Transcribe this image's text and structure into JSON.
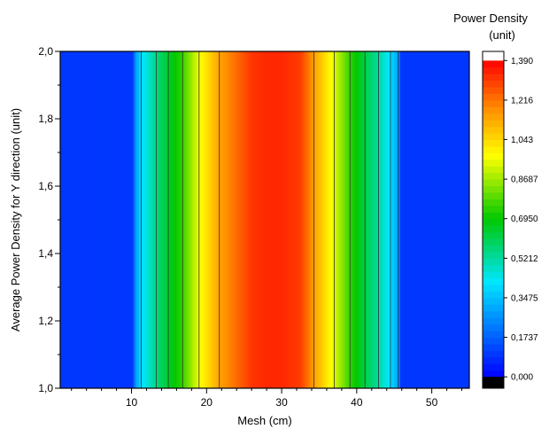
{
  "chart_data": {
    "type": "heatmap",
    "title": "",
    "xlabel": "Mesh (cm)",
    "ylabel": "Average Power Density for Y direction (unit)",
    "xlim": [
      0.5,
      55
    ],
    "ylim": [
      1.0,
      2.0
    ],
    "x_ticks": [
      10,
      20,
      30,
      40,
      50
    ],
    "x_tick_labels": [
      "10",
      "20",
      "30",
      "40",
      "50"
    ],
    "y_ticks": [
      1.0,
      1.2,
      1.4,
      1.6,
      1.8,
      2.0
    ],
    "y_tick_labels": [
      "1,0",
      "1,2",
      "1,4",
      "1,6",
      "1,8",
      "2,0"
    ],
    "contour_lines_x": [
      11.3,
      13.3,
      14.9,
      16.8,
      19.0,
      21.7,
      34.3,
      37.0,
      39.1,
      41.1,
      42.9,
      44.5,
      45.5
    ],
    "profile": {
      "x": [
        0.5,
        10.2,
        10.5,
        11.3,
        13.3,
        14.9,
        16.8,
        19.0,
        21.7,
        24.5,
        26.0,
        28.0,
        30.0,
        32.5,
        34.3,
        37.0,
        39.1,
        41.1,
        42.9,
        44.5,
        45.5,
        45.9,
        55.0
      ],
      "value": [
        0.1,
        0.1,
        0.28,
        0.4,
        0.55,
        0.65,
        0.75,
        0.96,
        1.14,
        1.25,
        1.31,
        1.33,
        1.33,
        1.3,
        1.15,
        0.94,
        0.75,
        0.62,
        0.52,
        0.4,
        0.3,
        0.1,
        0.1
      ]
    },
    "colorbar": {
      "title": "Power Density",
      "unit": "(unit)",
      "ticks": [
        0.0,
        0.1737,
        0.3475,
        0.5212,
        0.695,
        0.8687,
        1.043,
        1.216,
        1.39
      ],
      "tick_labels": [
        "0,000",
        "0,1737",
        "0,3475",
        "0,5212",
        "0,6950",
        "0,8687",
        "1,043",
        "1,216",
        "1,390"
      ],
      "range": [
        -0.05,
        1.43
      ]
    }
  }
}
